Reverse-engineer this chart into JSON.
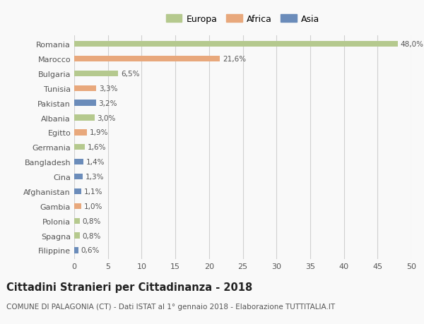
{
  "countries": [
    "Romania",
    "Marocco",
    "Bulgaria",
    "Tunisia",
    "Pakistan",
    "Albania",
    "Egitto",
    "Germania",
    "Bangladesh",
    "Cina",
    "Afghanistan",
    "Gambia",
    "Polonia",
    "Spagna",
    "Filippine"
  ],
  "values": [
    48.0,
    21.6,
    6.5,
    3.3,
    3.2,
    3.0,
    1.9,
    1.6,
    1.4,
    1.3,
    1.1,
    1.0,
    0.8,
    0.8,
    0.6
  ],
  "labels": [
    "48,0%",
    "21,6%",
    "6,5%",
    "3,3%",
    "3,2%",
    "3,0%",
    "1,9%",
    "1,6%",
    "1,4%",
    "1,3%",
    "1,1%",
    "1,0%",
    "0,8%",
    "0,8%",
    "0,6%"
  ],
  "continents": [
    "Europa",
    "Africa",
    "Europa",
    "Africa",
    "Asia",
    "Europa",
    "Africa",
    "Europa",
    "Asia",
    "Asia",
    "Asia",
    "Africa",
    "Europa",
    "Europa",
    "Asia"
  ],
  "colors": {
    "Europa": "#b5c98e",
    "Africa": "#e8a87c",
    "Asia": "#6b8cba"
  },
  "xlim": [
    0,
    50
  ],
  "xticks": [
    0,
    5,
    10,
    15,
    20,
    25,
    30,
    35,
    40,
    45,
    50
  ],
  "title": "Cittadini Stranieri per Cittadinanza - 2018",
  "subtitle": "COMUNE DI PALAGONIA (CT) - Dati ISTAT al 1° gennaio 2018 - Elaborazione TUTTITALIA.IT",
  "background_color": "#f9f9f9",
  "grid_color": "#d0d0d0",
  "bar_height": 0.4,
  "title_fontsize": 10.5,
  "subtitle_fontsize": 7.5,
  "ytick_fontsize": 8,
  "xtick_fontsize": 8,
  "label_fontsize": 7.5,
  "legend_fontsize": 9
}
